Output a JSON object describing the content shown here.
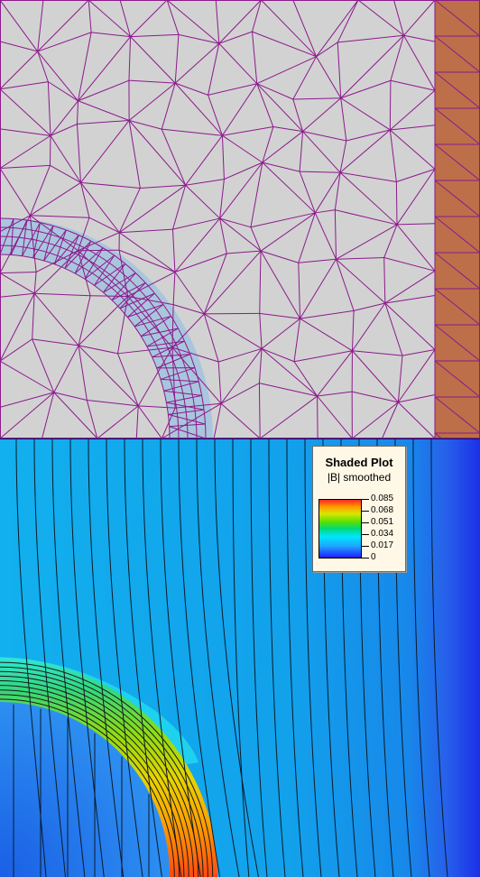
{
  "legend": {
    "title": "Shaded Plot",
    "subtitle": "|B| smoothed",
    "ticks": [
      "0.085",
      "0.068",
      "0.051",
      "0.034",
      "0.017",
      "0"
    ]
  },
  "colors": {
    "air_region": "#d2d2d2",
    "steel_strip": "#bd6f49",
    "mesh_lines": "#8b1a8b",
    "hollow_region": "#a9c6dd",
    "field_background": "#11a7ea",
    "field_inner": "#1f6ee8",
    "field_edge": "#1e2fe6"
  },
  "scale": {
    "min": 0,
    "max": 0.085
  }
}
